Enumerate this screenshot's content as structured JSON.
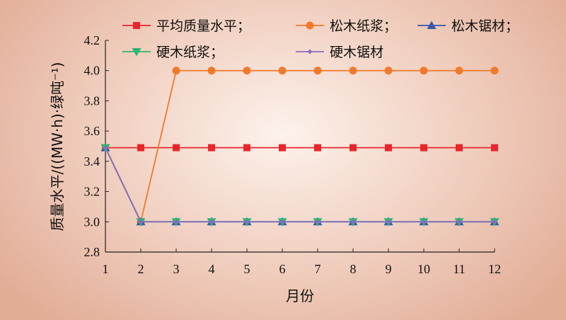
{
  "chart_data": {
    "type": "line",
    "title": "",
    "xlabel": "月份",
    "ylabel": "质量水平/((MW·h)·绿吨⁻¹)",
    "x": [
      1,
      2,
      3,
      4,
      5,
      6,
      7,
      8,
      9,
      10,
      11,
      12
    ],
    "ylim": [
      2.8,
      4.2
    ],
    "yticks": [
      "2.8",
      "3.0",
      "3.2",
      "3.4",
      "3.6",
      "3.8",
      "4.0",
      "4.2"
    ],
    "grid": false,
    "legend_position": "top",
    "series": [
      {
        "name": "平均质量水平；",
        "color": "#e8262c",
        "marker": "square",
        "values": [
          3.49,
          3.49,
          3.49,
          3.49,
          3.49,
          3.49,
          3.49,
          3.49,
          3.49,
          3.49,
          3.49,
          3.49
        ]
      },
      {
        "name": "松木纸浆；",
        "color": "#f07a2b",
        "marker": "circle",
        "values": [
          3.49,
          3.0,
          4.0,
          4.0,
          4.0,
          4.0,
          4.0,
          4.0,
          4.0,
          4.0,
          4.0,
          4.0
        ]
      },
      {
        "name": "松木锯材；",
        "color": "#3a58a8",
        "marker": "triangle-up",
        "values": [
          3.49,
          3.0,
          3.0,
          3.0,
          3.0,
          3.0,
          3.0,
          3.0,
          3.0,
          3.0,
          3.0,
          3.0
        ]
      },
      {
        "name": "硬木纸浆；",
        "color": "#2bb673",
        "marker": "triangle-down",
        "values": [
          3.49,
          3.0,
          3.0,
          3.0,
          3.0,
          3.0,
          3.0,
          3.0,
          3.0,
          3.0,
          3.0,
          3.0
        ]
      },
      {
        "name": "硬木锯材",
        "color": "#8a6bbf",
        "marker": "diamond",
        "values": [
          3.49,
          3.0,
          3.0,
          3.0,
          3.0,
          3.0,
          3.0,
          3.0,
          3.0,
          3.0,
          3.0,
          3.0
        ]
      }
    ]
  }
}
